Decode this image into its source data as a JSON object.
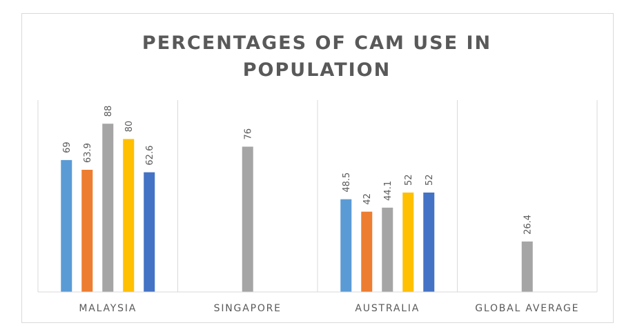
{
  "chart_data": {
    "type": "bar",
    "title": "PERCENTAGES OF CAM USE IN POPULATION",
    "title_lines": [
      "PERCENTAGES OF CAM USE IN",
      "POPULATION"
    ],
    "categories": [
      "MALAYSIA",
      "SINGAPORE",
      "AUSTRALIA",
      "GLOBAL AVERAGE"
    ],
    "series": [
      {
        "color": "#5b9bd5",
        "values": [
          69,
          null,
          48.5,
          null
        ]
      },
      {
        "color": "#ed7d31",
        "values": [
          63.9,
          null,
          42,
          null
        ]
      },
      {
        "color": "#a5a5a5",
        "values": [
          88,
          76,
          44.1,
          26.4
        ]
      },
      {
        "color": "#ffc000",
        "values": [
          80,
          null,
          52,
          null
        ]
      },
      {
        "color": "#4472c4",
        "values": [
          62.6,
          null,
          52,
          null
        ]
      }
    ],
    "ylim": [
      0,
      100
    ],
    "grid": false,
    "legend": "none",
    "xlabel": "",
    "ylabel": ""
  }
}
